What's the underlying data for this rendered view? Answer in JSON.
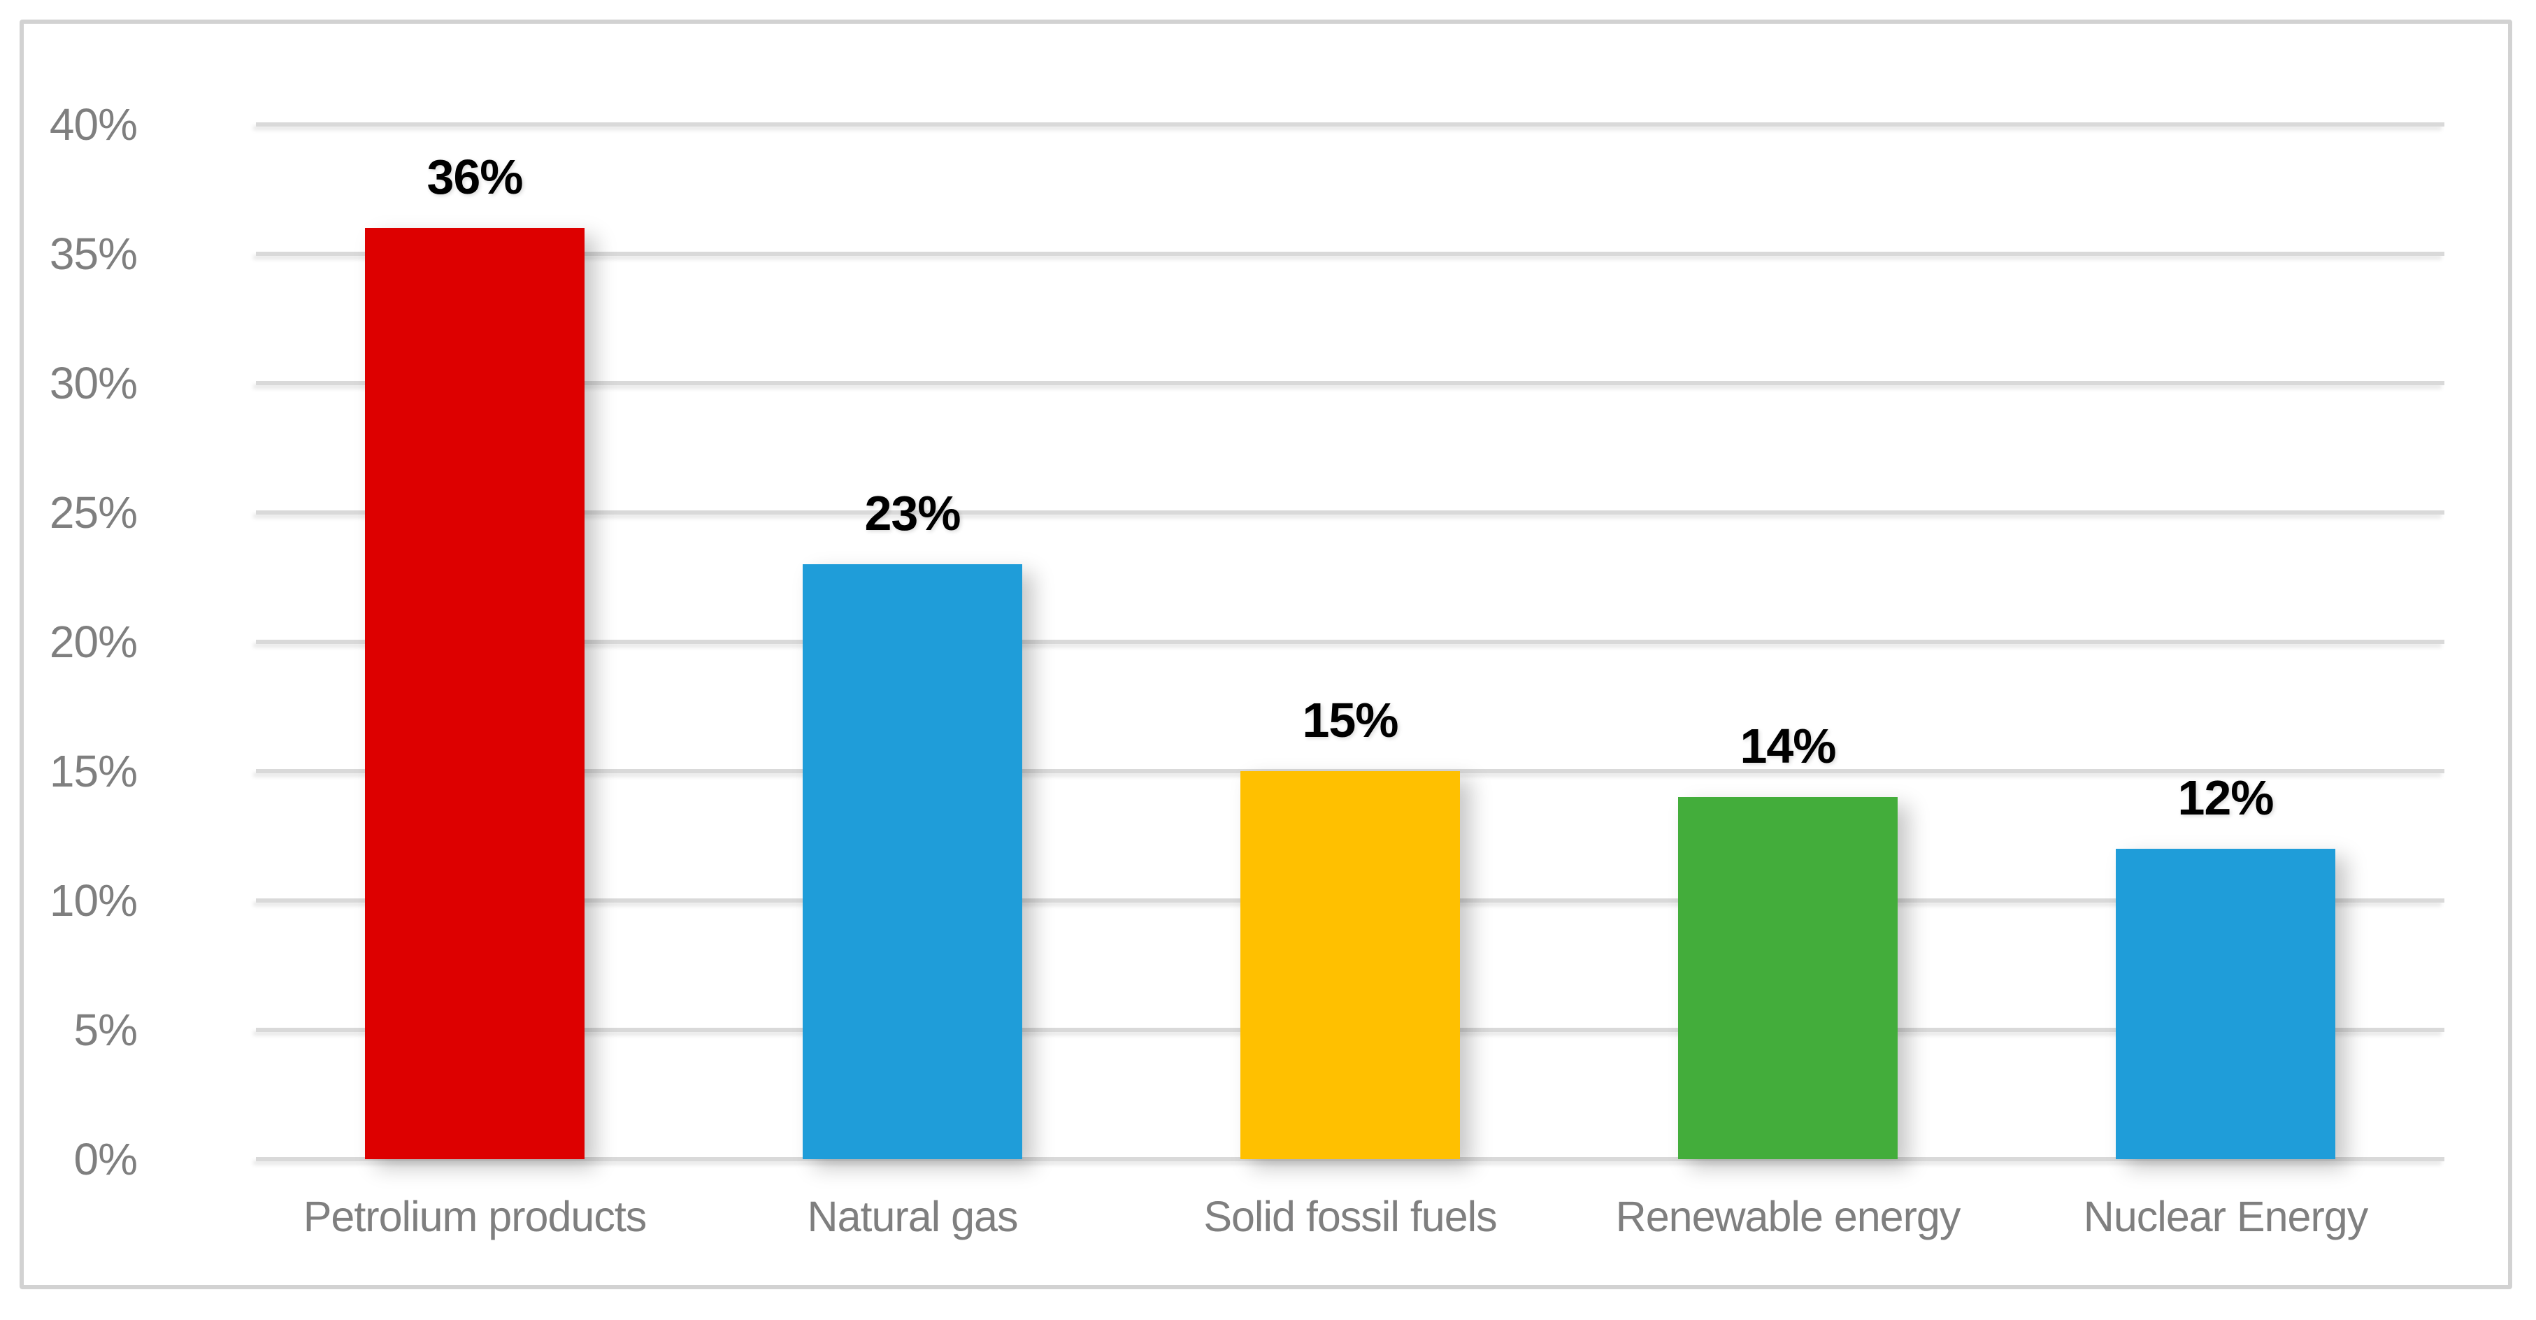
{
  "chart_data": {
    "type": "bar",
    "title": "",
    "xlabel": "",
    "ylabel": "",
    "categories": [
      "Petrolium products",
      "Natural gas",
      "Solid fossil fuels",
      "Renewable energy",
      "Nuclear Energy"
    ],
    "values": [
      36,
      23,
      15,
      14,
      12
    ],
    "data_labels": [
      "36%",
      "23%",
      "15%",
      "14%",
      "12%"
    ],
    "bar_colors": [
      "#DD0000",
      "#1F9DD9",
      "#FFC000",
      "#43AD3B",
      "#1F9DD9"
    ],
    "y_tick_values": [
      0,
      5,
      10,
      15,
      20,
      25,
      30,
      35,
      40
    ],
    "y_tick_labels": [
      "0%",
      "5%",
      "10%",
      "15%",
      "20%",
      "25%",
      "30%",
      "35%",
      "40%"
    ],
    "ylim": [
      0,
      40
    ],
    "grid": true,
    "legend": false,
    "colors": {
      "gridline": "#d9d9d9",
      "axis_text": "#7f7f7f",
      "data_label_text": "#000000",
      "frame_border": "#d2d2d2",
      "background": "#ffffff"
    }
  }
}
